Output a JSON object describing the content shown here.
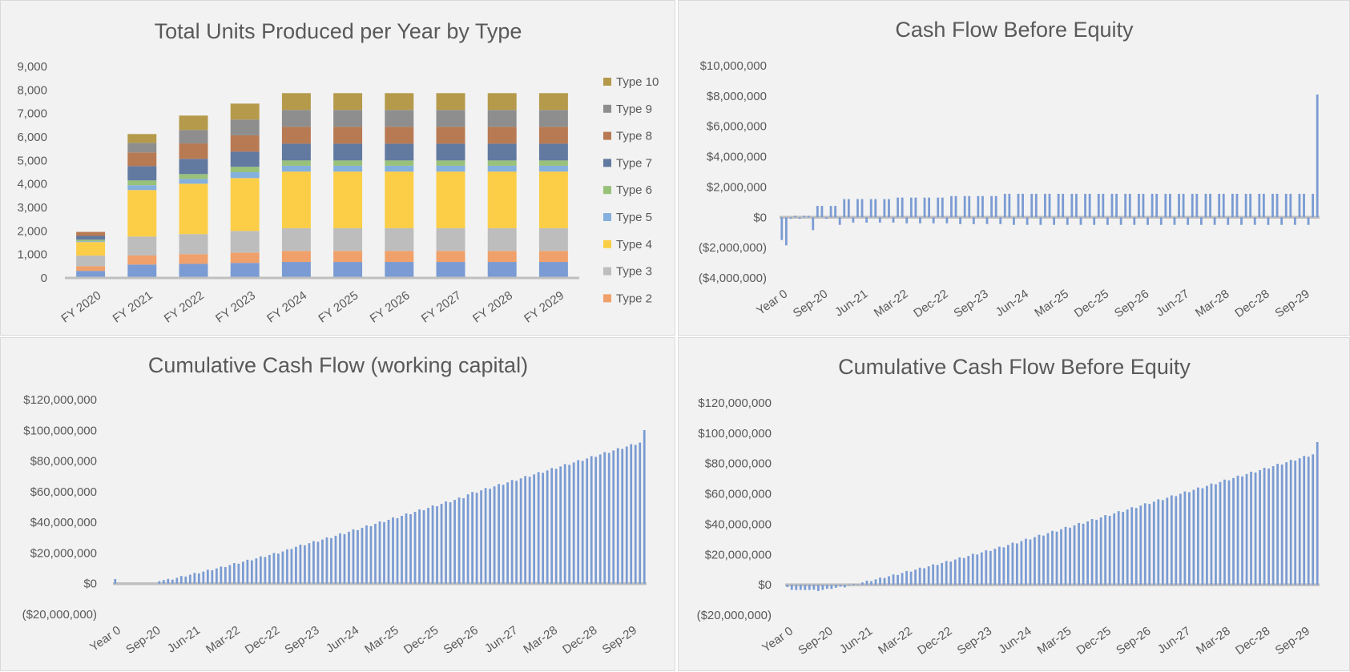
{
  "chart_data": [
    {
      "type": "bar",
      "stacked": true,
      "title": "Total Units Produced per Year by Type",
      "categories": [
        "FY 2020",
        "FY 2021",
        "FY 2022",
        "FY 2023",
        "FY 2024",
        "FY 2025",
        "FY 2026",
        "FY 2027",
        "FY 2028",
        "FY 2029"
      ],
      "ylim": [
        0,
        9000
      ],
      "yticks": [
        0,
        1000,
        2000,
        3000,
        4000,
        5000,
        6000,
        7000,
        8000,
        9000
      ],
      "ytick_labels": [
        "0",
        "1,000",
        "2,000",
        "3,000",
        "4,000",
        "5,000",
        "6,000",
        "7,000",
        "8,000",
        "9,000"
      ],
      "legend": "right",
      "series": [
        {
          "color": "#7A9BD3",
          "values": [
            300,
            570,
            600,
            640,
            680,
            680,
            680,
            680,
            680,
            680
          ]
        },
        {
          "name": "Type 2",
          "color": "#F0A06A",
          "values": [
            200,
            385,
            410,
            440,
            470,
            470,
            470,
            470,
            470,
            470
          ]
        },
        {
          "name": "Type 3",
          "color": "#BDBDBD",
          "values": [
            450,
            805,
            855,
            920,
            965,
            965,
            965,
            965,
            965,
            965
          ]
        },
        {
          "name": "Type 4",
          "color": "#FCCE47",
          "values": [
            575,
            1980,
            2145,
            2250,
            2410,
            2410,
            2410,
            2410,
            2410,
            2410
          ]
        },
        {
          "name": "Type 5",
          "color": "#84B0DE",
          "values": [
            35,
            205,
            205,
            250,
            250,
            250,
            250,
            250,
            250,
            250
          ]
        },
        {
          "name": "Type 6",
          "color": "#99C17A",
          "values": [
            70,
            205,
            205,
            230,
            225,
            225,
            225,
            225,
            225,
            225
          ]
        },
        {
          "name": "Type 7",
          "color": "#6279A0",
          "values": [
            160,
            610,
            650,
            645,
            715,
            715,
            715,
            715,
            715,
            715
          ]
        },
        {
          "name": "Type 8",
          "color": "#B87A53",
          "values": [
            170,
            580,
            655,
            695,
            715,
            715,
            715,
            715,
            715,
            715
          ]
        },
        {
          "name": "Type 9",
          "color": "#8E8E8E",
          "values": [
            0,
            410,
            570,
            670,
            720,
            720,
            720,
            720,
            720,
            720
          ]
        },
        {
          "name": "Type 10",
          "color": "#B59A4B",
          "values": [
            0,
            375,
            615,
            680,
            715,
            715,
            715,
            715,
            715,
            715
          ]
        }
      ]
    },
    {
      "type": "bar",
      "title": "Cash Flow Before Equity",
      "color": "#7A9BD3",
      "ylim": [
        -4000000,
        10000000
      ],
      "yticks": [
        -4000000,
        -2000000,
        0,
        2000000,
        4000000,
        6000000,
        8000000,
        10000000
      ],
      "ytick_labels": [
        "($4,000,000)",
        "($2,000,000)",
        "$0",
        "$2,000,000",
        "$4,000,000",
        "$6,000,000",
        "$8,000,000",
        "$10,000,000"
      ],
      "xtick_labels": [
        "Year 0",
        "Sep-20",
        "Jun-21",
        "Mar-22",
        "Dec-22",
        "Sep-23",
        "Jun-24",
        "Mar-25",
        "Dec-25",
        "Sep-26",
        "Jun-27",
        "Mar-28",
        "Dec-28",
        "Sep-29"
      ],
      "values": [
        -1500000,
        -1850000,
        -100000,
        100000,
        -100000,
        100000,
        100000,
        -850000,
        750000,
        750000,
        -100000,
        750000,
        750000,
        -500000,
        1200000,
        1200000,
        -350000,
        1200000,
        1200000,
        -350000,
        1200000,
        1200000,
        -350000,
        1200000,
        1200000,
        -350000,
        1300000,
        1300000,
        -400000,
        1300000,
        1300000,
        -400000,
        1300000,
        1300000,
        -400000,
        1300000,
        1300000,
        -400000,
        1400000,
        1400000,
        -450000,
        1400000,
        1400000,
        -450000,
        1400000,
        1400000,
        -450000,
        1400000,
        1400000,
        -450000,
        1550000,
        1550000,
        -500000,
        1550000,
        1550000,
        -500000,
        1550000,
        1550000,
        -500000,
        1550000,
        1550000,
        -500000,
        1550000,
        1550000,
        -500000,
        1550000,
        1550000,
        -500000,
        1550000,
        1550000,
        -500000,
        1550000,
        1550000,
        -500000,
        1550000,
        1550000,
        -500000,
        1550000,
        1550000,
        -500000,
        1550000,
        1550000,
        -500000,
        1550000,
        1550000,
        -500000,
        1550000,
        1550000,
        -500000,
        1550000,
        1550000,
        -500000,
        1550000,
        1550000,
        -500000,
        1550000,
        1550000,
        -500000,
        1550000,
        1550000,
        -500000,
        1550000,
        1550000,
        -500000,
        1550000,
        1550000,
        -500000,
        1550000,
        1550000,
        -500000,
        1550000,
        1550000,
        -500000,
        1550000,
        1550000,
        -500000,
        1550000,
        1550000,
        -500000,
        1550000,
        8100000
      ]
    },
    {
      "type": "bar",
      "title": "Cumulative Cash Flow (working capital)",
      "color": "#7A9BD3",
      "ylim": [
        -20000000,
        120000000
      ],
      "yticks": [
        -20000000,
        0,
        20000000,
        40000000,
        60000000,
        80000000,
        100000000,
        120000000
      ],
      "ytick_labels": [
        "($20,000,000)",
        "$0",
        "$20,000,000",
        "$40,000,000",
        "$60,000,000",
        "$80,000,000",
        "$100,000,000",
        "$120,000,000"
      ],
      "xtick_labels": [
        "Year 0",
        "Sep-20",
        "Jun-21",
        "Mar-22",
        "Dec-22",
        "Sep-23",
        "Jun-24",
        "Mar-25",
        "Dec-25",
        "Sep-26",
        "Jun-27",
        "Mar-28",
        "Dec-28",
        "Sep-29"
      ],
      "values": [
        3000000,
        0,
        0,
        0,
        0,
        0,
        0,
        0,
        0,
        0,
        1600000,
        2350000,
        3100000,
        2600000,
        3800000,
        5000000,
        4650000,
        5850000,
        7050000,
        6700000,
        7900000,
        9100000,
        8750000,
        9950000,
        11150000,
        10800000,
        12100000,
        13400000,
        13000000,
        14300000,
        15600000,
        15200000,
        16500000,
        17800000,
        17400000,
        18700000,
        20000000,
        19600000,
        21000000,
        22400000,
        22650000,
        24050000,
        25450000,
        25000000,
        26400000,
        27800000,
        27350000,
        28750000,
        30150000,
        29700000,
        31250000,
        32800000,
        32300000,
        33850000,
        35400000,
        34900000,
        36450000,
        38000000,
        37500000,
        39050000,
        40600000,
        40100000,
        41650000,
        43200000,
        42700000,
        44250000,
        45800000,
        45300000,
        46850000,
        48400000,
        47900000,
        49450000,
        51000000,
        50500000,
        52050000,
        53600000,
        53100000,
        54650000,
        56200000,
        55700000,
        58250000,
        59800000,
        59300000,
        60850000,
        62400000,
        61900000,
        63450000,
        65000000,
        64500000,
        66050000,
        67600000,
        67100000,
        68650000,
        70200000,
        69700000,
        71250000,
        72800000,
        72300000,
        73850000,
        75400000,
        74900000,
        76450000,
        78000000,
        77500000,
        79050000,
        80600000,
        80100000,
        81650000,
        83200000,
        82700000,
        84250000,
        85800000,
        85300000,
        86850000,
        88400000,
        87900000,
        89450000,
        91000000,
        90500000,
        92050000,
        100150000
      ]
    },
    {
      "type": "bar",
      "title": "Cumulative Cash Flow Before Equity",
      "color": "#7A9BD3",
      "ylim": [
        -20000000,
        120000000
      ],
      "yticks": [
        -20000000,
        0,
        20000000,
        40000000,
        60000000,
        80000000,
        100000000,
        120000000
      ],
      "ytick_labels": [
        "($20,000,000)",
        "$0",
        "$20,000,000",
        "$40,000,000",
        "$60,000,000",
        "$80,000,000",
        "$100,000,000",
        "$120,000,000"
      ],
      "xtick_labels": [
        "Year 0",
        "Sep-20",
        "Jun-21",
        "Mar-22",
        "Dec-22",
        "Sep-23",
        "Jun-24",
        "Mar-25",
        "Dec-25",
        "Sep-26",
        "Jun-27",
        "Mar-28",
        "Dec-28",
        "Sep-29"
      ],
      "values": [
        -1500000,
        -3350000,
        -3450000,
        -3350000,
        -3450000,
        -3350000,
        -3250000,
        -4100000,
        -3350000,
        -2600000,
        -2700000,
        -1950000,
        -1200000,
        -1700000,
        -500000,
        700000,
        350000,
        1550000,
        2750000,
        2400000,
        3600000,
        4800000,
        4450000,
        5650000,
        6850000,
        6500000,
        7800000,
        9100000,
        8700000,
        10000000,
        11300000,
        10900000,
        12200000,
        13500000,
        13100000,
        14400000,
        15700000,
        15300000,
        16700000,
        18100000,
        17650000,
        19050000,
        20450000,
        20000000,
        21400000,
        22800000,
        22350000,
        23750000,
        25150000,
        24700000,
        26250000,
        27800000,
        27300000,
        28850000,
        30400000,
        29900000,
        31450000,
        33000000,
        32500000,
        34050000,
        35600000,
        35100000,
        36650000,
        38200000,
        37700000,
        39250000,
        40800000,
        40300000,
        41850000,
        43400000,
        42900000,
        44450000,
        46000000,
        45500000,
        47050000,
        48600000,
        48100000,
        49650000,
        51200000,
        50700000,
        52250000,
        53800000,
        53300000,
        54850000,
        56400000,
        55900000,
        57450000,
        59000000,
        58500000,
        60050000,
        61600000,
        61100000,
        62650000,
        64200000,
        63700000,
        65250000,
        66800000,
        66300000,
        67850000,
        69400000,
        68900000,
        70450000,
        72000000,
        71500000,
        73050000,
        74600000,
        74100000,
        75650000,
        77200000,
        76700000,
        78250000,
        79800000,
        79300000,
        80850000,
        82400000,
        81900000,
        83450000,
        85000000,
        84500000,
        86050000,
        94150000
      ]
    }
  ]
}
